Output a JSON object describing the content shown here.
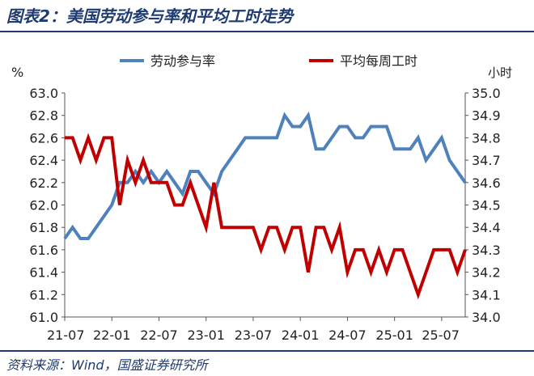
{
  "title": "图表2：美国劳动参与率和平均工时走势",
  "source": "资料来源：Wind，国盛证券研究所",
  "chart_data": {
    "type": "line",
    "left_unit": "%",
    "right_unit": "小时",
    "x_ticks": [
      "21-07",
      "22-01",
      "22-07",
      "23-01",
      "23-07",
      "24-01",
      "24-07",
      "25-01",
      "25-07"
    ],
    "y_left": {
      "range": [
        61.0,
        63.0
      ],
      "ticks": [
        "61.0",
        "61.2",
        "61.4",
        "61.6",
        "61.8",
        "62.0",
        "62.2",
        "62.4",
        "62.6",
        "62.8",
        "63.0"
      ]
    },
    "y_right": {
      "range": [
        34.0,
        35.0
      ],
      "ticks": [
        "34.0",
        "34.1",
        "34.2",
        "34.3",
        "34.4",
        "34.5",
        "34.6",
        "34.7",
        "34.8",
        "34.9",
        "35.0"
      ]
    },
    "x_start": "2021-07",
    "legend_position": "top",
    "series": [
      {
        "name": "劳动参与率",
        "axis": "left",
        "color": "#4f81bd",
        "values": [
          61.7,
          61.8,
          61.7,
          61.7,
          61.8,
          61.9,
          62.0,
          62.2,
          62.2,
          62.3,
          62.2,
          62.3,
          62.2,
          62.3,
          62.2,
          62.1,
          62.3,
          62.3,
          62.2,
          62.1,
          62.3,
          62.4,
          62.5,
          62.6,
          62.6,
          62.6,
          62.6,
          62.6,
          62.8,
          62.7,
          62.7,
          62.8,
          62.5,
          62.5,
          62.6,
          62.7,
          62.7,
          62.6,
          62.6,
          62.7,
          62.7,
          62.7,
          62.5,
          62.5,
          62.5,
          62.6,
          62.4,
          62.5,
          62.6,
          62.4,
          62.3,
          62.2
        ]
      },
      {
        "name": "平均每周工时",
        "axis": "right",
        "color": "#c00000",
        "values": [
          34.8,
          34.8,
          34.7,
          34.8,
          34.7,
          34.8,
          34.8,
          34.5,
          34.7,
          34.6,
          34.7,
          34.6,
          34.6,
          34.6,
          34.5,
          34.5,
          34.6,
          34.5,
          34.4,
          34.6,
          34.4,
          34.4,
          34.4,
          34.4,
          34.4,
          34.3,
          34.4,
          34.4,
          34.3,
          34.4,
          34.4,
          34.2,
          34.4,
          34.4,
          34.3,
          34.4,
          34.2,
          34.3,
          34.3,
          34.2,
          34.3,
          34.2,
          34.3,
          34.3,
          34.2,
          34.1,
          34.2,
          34.3,
          34.3,
          34.3,
          34.2,
          34.3
        ]
      }
    ]
  }
}
